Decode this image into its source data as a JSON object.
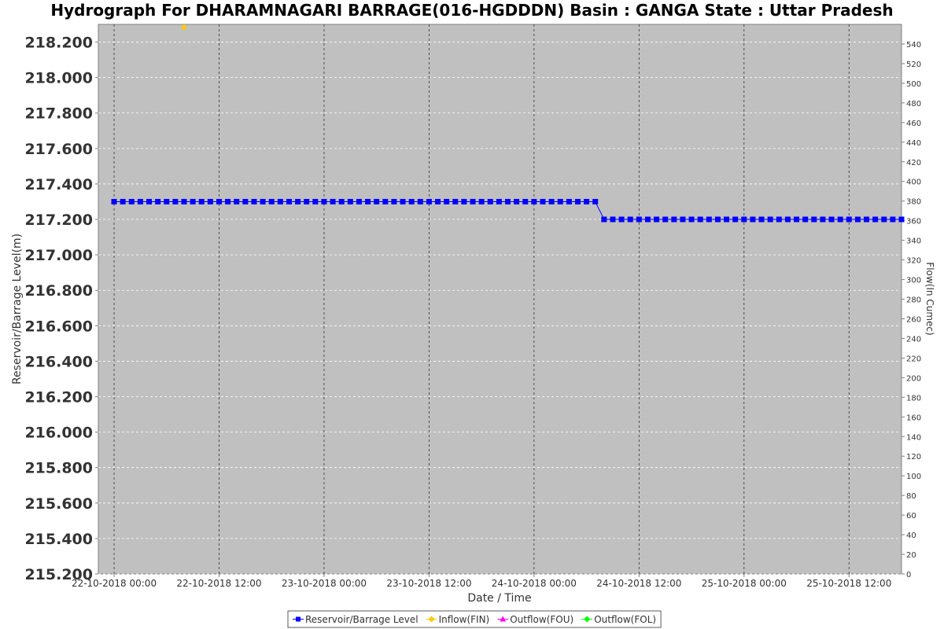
{
  "chart_data": {
    "type": "line",
    "title": "Hydrograph For DHARAMNAGARI BARRAGE(016-HGDDDN) Basin : GANGA State : Uttar Pradesh",
    "xlabel": "Date / Time",
    "ylabel_left": "Reservoir/Barrage Level(m)",
    "ylabel_right": "Flow(In Cumec)",
    "x_start": "22-10-2018 00:00",
    "x_tick_labels": [
      "22-10-2018 00:00",
      "22-10-2018 12:00",
      "23-10-2018 00:00",
      "23-10-2018 12:00",
      "24-10-2018 00:00",
      "24-10-2018 12:00",
      "25-10-2018 00:00",
      "25-10-2018 12:00"
    ],
    "x_tick_hours": [
      0,
      12,
      24,
      36,
      48,
      60,
      72,
      84
    ],
    "x_range_hours": [
      -1.8,
      90
    ],
    "ylim_left": [
      215.2,
      218.3
    ],
    "y_ticks_left": [
      "215.200",
      "215.400",
      "215.600",
      "215.800",
      "216.000",
      "216.200",
      "216.400",
      "216.600",
      "216.800",
      "217.000",
      "217.200",
      "217.400",
      "217.600",
      "217.800",
      "218.000",
      "218.200"
    ],
    "ylim_right": [
      0,
      560
    ],
    "y_ticks_right": [
      "0",
      "20",
      "40",
      "60",
      "80",
      "100",
      "120",
      "140",
      "160",
      "180",
      "200",
      "220",
      "240",
      "260",
      "280",
      "300",
      "320",
      "340",
      "360",
      "380",
      "400",
      "420",
      "440",
      "460",
      "480",
      "500",
      "520",
      "540"
    ],
    "grid": true,
    "background": "#c0c0c0",
    "legend_position": "bottom",
    "series": [
      {
        "name": "Reservoir/Barrage Level",
        "color": "#0000ff",
        "marker": "square",
        "axis": "left",
        "segments": [
          {
            "start_hour": 0,
            "end_hour": 55,
            "step_hours": 1,
            "value": 217.3
          },
          {
            "start_hour": 56,
            "end_hour": 90,
            "step_hours": 1,
            "value": 217.2
          }
        ]
      },
      {
        "name": "Inflow(FIN)",
        "color": "#ffc800",
        "marker": "diamond",
        "axis": "right",
        "points": [
          {
            "hour": 8,
            "value": 557
          }
        ]
      },
      {
        "name": "Outflow(FOU)",
        "color": "#ff00ff",
        "marker": "triangle",
        "axis": "right",
        "points": []
      },
      {
        "name": "Outflow(FOL)",
        "color": "#00ff00",
        "marker": "diamond",
        "axis": "right",
        "points": []
      }
    ]
  }
}
